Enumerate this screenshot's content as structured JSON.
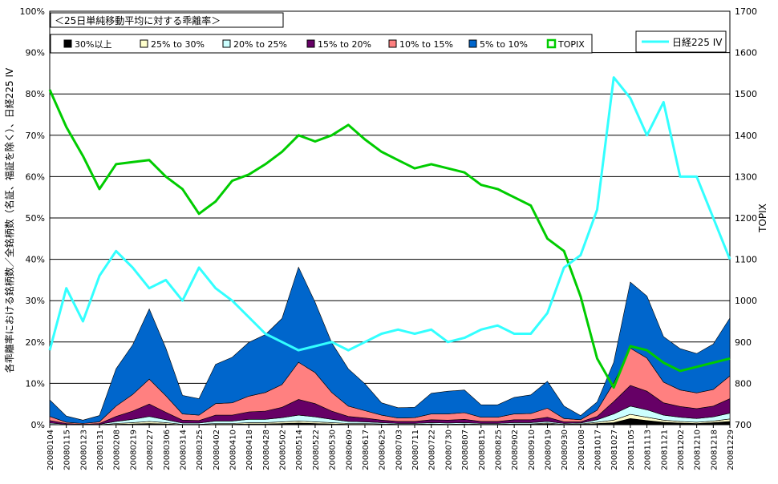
{
  "chart_data": {
    "type": "area",
    "title": "＜25日単純移動平均に対する乖離率＞",
    "left_axis": {
      "label": "各乖離率における銘柄数／全銘柄数（名証、福証を除く）、日経225 IV",
      "min": 0,
      "max": 100,
      "step": 10,
      "unit": "%",
      "ticks": [
        "0%",
        "10%",
        "20%",
        "30%",
        "40%",
        "50%",
        "60%",
        "70%",
        "80%",
        "90%",
        "100%"
      ]
    },
    "right_axis": {
      "label": "TOPIX",
      "min": 700,
      "max": 1700,
      "step": 100,
      "ticks": [
        "700",
        "800",
        "900",
        "1000",
        "1100",
        "1200",
        "1300",
        "1400",
        "1500",
        "1600",
        "1700"
      ]
    },
    "x_labels": [
      "20080104",
      "20080115",
      "20080123",
      "20080131",
      "20080208",
      "20080219",
      "20080227",
      "20080306",
      "20080314",
      "20080325",
      "20080402",
      "20080410",
      "20080418",
      "20080428",
      "20080502",
      "20080514",
      "20080522",
      "20080530",
      "20080609",
      "20080617",
      "20080625",
      "20080703",
      "20080711",
      "20080722",
      "20080730",
      "20080807",
      "20080815",
      "20080825",
      "20080902",
      "20080910",
      "20080919",
      "20080930",
      "20081008",
      "20081017",
      "20081027",
      "20081105",
      "20081113",
      "20081121",
      "20081202",
      "20081210",
      "20081218",
      "20081229"
    ],
    "grid": true,
    "legend_placement": "top",
    "colors": {
      "band_30": "#000000",
      "band_25_30": "#ffffcc",
      "band_20_25": "#ccffff",
      "band_15_20": "#660066",
      "band_10_15": "#ff8080",
      "band_5_10": "#0066cc",
      "topix": "#00cc00",
      "iv": "#33ffff"
    },
    "series": [
      {
        "name": "30%以上",
        "key": "band_30",
        "axis": "left",
        "values": [
          0,
          0,
          0,
          0,
          0.1,
          0.2,
          0.3,
          0.2,
          0,
          0,
          0.1,
          0.1,
          0.2,
          0.2,
          0.3,
          0.4,
          0.3,
          0.2,
          0.1,
          0.1,
          0.1,
          0,
          0,
          0.1,
          0,
          0.1,
          0,
          0,
          0.1,
          0.1,
          0.2,
          0,
          0.1,
          0.3,
          0.5,
          1.5,
          1.0,
          0.6,
          0.4,
          0.3,
          0.5,
          0.8
        ]
      },
      {
        "name": "25% to 30%",
        "key": "band_25_30",
        "axis": "left",
        "values": [
          0.1,
          0,
          0,
          0,
          0.2,
          0.3,
          0.5,
          0.3,
          0.1,
          0.1,
          0.2,
          0.2,
          0.3,
          0.3,
          0.4,
          0.5,
          0.4,
          0.3,
          0.2,
          0.2,
          0.1,
          0.1,
          0.1,
          0.1,
          0.1,
          0.1,
          0.1,
          0.1,
          0.1,
          0.1,
          0.2,
          0.1,
          0.1,
          0.3,
          0.6,
          1.0,
          0.8,
          0.5,
          0.4,
          0.3,
          0.4,
          0.6
        ]
      },
      {
        "name": "20% to 25%",
        "key": "band_20_25",
        "axis": "left",
        "values": [
          0.3,
          0.1,
          0,
          0.1,
          0.5,
          0.8,
          1.2,
          0.7,
          0.3,
          0.3,
          0.6,
          0.6,
          0.8,
          0.8,
          1.0,
          1.4,
          1.2,
          0.8,
          0.5,
          0.4,
          0.3,
          0.2,
          0.2,
          0.3,
          0.3,
          0.3,
          0.2,
          0.2,
          0.3,
          0.3,
          0.4,
          0.2,
          0.2,
          0.6,
          1.5,
          2.0,
          1.8,
          1.2,
          1.0,
          0.9,
          1.0,
          1.4
        ]
      },
      {
        "name": "15% to 20%",
        "key": "band_15_20",
        "axis": "left",
        "values": [
          0.6,
          0.2,
          0.1,
          0.2,
          1.2,
          2.0,
          3.0,
          1.8,
          0.7,
          0.6,
          1.4,
          1.4,
          1.8,
          2.0,
          2.5,
          3.8,
          3.2,
          2.0,
          1.2,
          0.9,
          0.6,
          0.5,
          0.5,
          0.7,
          0.7,
          0.8,
          0.5,
          0.5,
          0.7,
          0.7,
          1.0,
          0.4,
          0.3,
          0.8,
          3.0,
          5.0,
          4.5,
          3.0,
          2.6,
          2.4,
          2.6,
          3.5
        ]
      },
      {
        "name": "10% to 15%",
        "key": "band_10_15",
        "axis": "left",
        "values": [
          1.0,
          0.3,
          0.2,
          0.4,
          2.5,
          4.0,
          6.0,
          4.0,
          1.5,
          1.3,
          2.8,
          3.0,
          3.8,
          4.5,
          5.5,
          9.0,
          7.5,
          4.5,
          2.5,
          1.8,
          1.2,
          0.8,
          0.9,
          1.4,
          1.5,
          1.6,
          1.0,
          1.0,
          1.4,
          1.5,
          2.2,
          0.8,
          0.5,
          1.5,
          4.5,
          9.0,
          8.0,
          5.0,
          4.0,
          3.8,
          4.0,
          5.5
        ]
      },
      {
        "name": "5% to 10%",
        "key": "band_5_10",
        "axis": "left",
        "values": [
          4.0,
          1.5,
          0.8,
          1.5,
          9.0,
          12.0,
          17.0,
          11.5,
          4.5,
          4.0,
          9.5,
          11.0,
          13.0,
          14.0,
          16.0,
          23.0,
          17.0,
          12.0,
          9.0,
          6.5,
          3.0,
          2.5,
          2.5,
          5.0,
          5.5,
          5.5,
          3.0,
          3.0,
          4.0,
          4.5,
          6.5,
          3.0,
          1.0,
          2.0,
          5.0,
          16.0,
          15.0,
          11.0,
          10.0,
          9.5,
          11.0,
          14.0
        ]
      },
      {
        "name": "TOPIX",
        "key": "topix",
        "axis": "right",
        "values": [
          1510,
          1420,
          1350,
          1270,
          1330,
          1335,
          1340,
          1300,
          1270,
          1210,
          1240,
          1290,
          1305,
          1330,
          1360,
          1400,
          1385,
          1400,
          1425,
          1390,
          1360,
          1340,
          1320,
          1330,
          1320,
          1310,
          1280,
          1270,
          1250,
          1230,
          1150,
          1120,
          1010,
          860,
          790,
          890,
          880,
          850,
          830,
          840,
          850,
          860
        ]
      },
      {
        "name": "日経225 IV",
        "key": "iv",
        "axis": "left",
        "values": [
          18,
          33,
          25,
          36,
          42,
          38,
          33,
          35,
          30,
          38,
          33,
          30,
          26,
          22,
          20,
          18,
          19,
          20,
          18,
          20,
          22,
          23,
          22,
          23,
          20,
          21,
          23,
          24,
          22,
          22,
          27,
          38,
          41,
          52,
          84,
          79,
          70,
          78,
          60,
          60,
          50,
          40
        ]
      }
    ]
  }
}
